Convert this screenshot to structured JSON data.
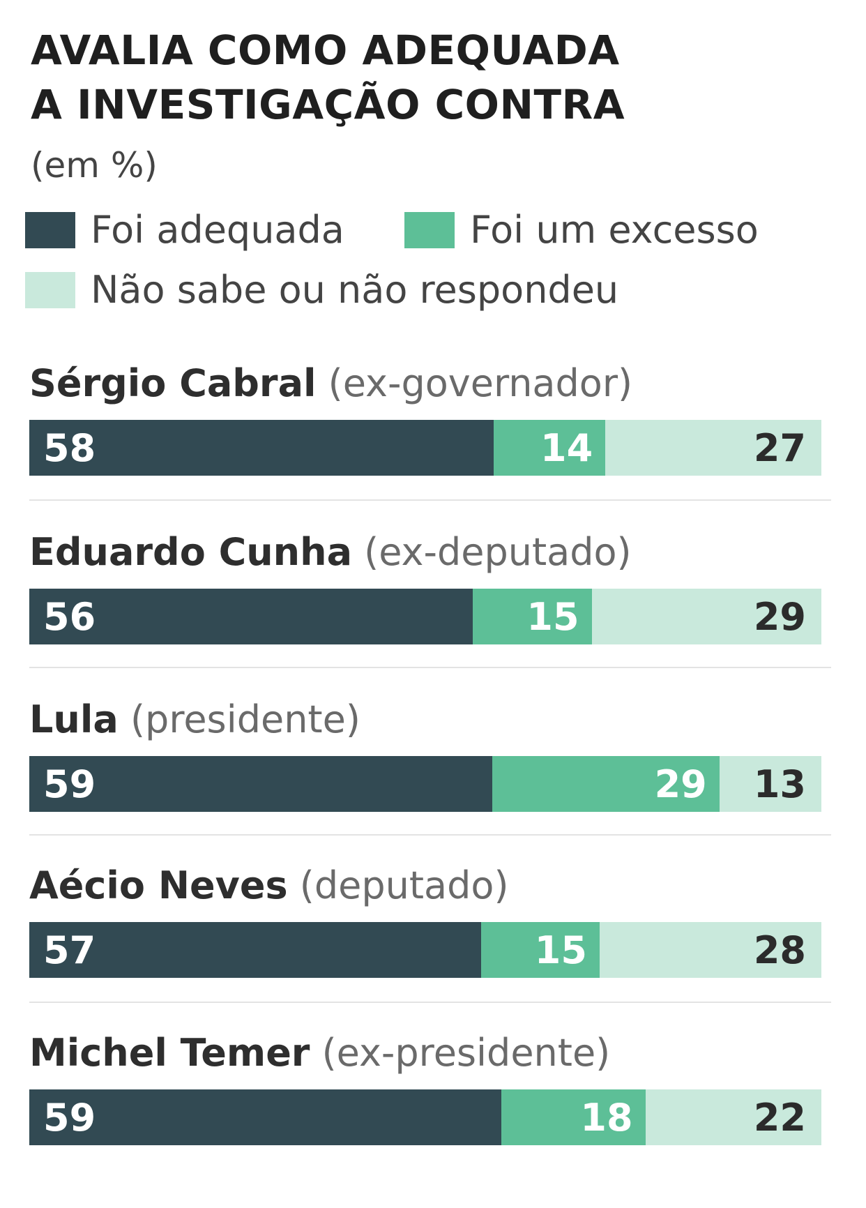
{
  "colors": {
    "dark": "#324a53",
    "green": "#5dbf97",
    "light": "#c9e9dc"
  },
  "chart_data": {
    "type": "bar",
    "orientation": "horizontal-stacked",
    "title": "AVALIA COMO ADEQUADA A INVESTIGAÇÃO CONTRA",
    "title_lines": [
      "AVALIA COMO ADEQUADA",
      "A INVESTIGAÇÃO CONTRA"
    ],
    "subtitle": "(em %)",
    "legend_position": "top",
    "grid": false,
    "categories": [
      {
        "name": "Sérgio Cabral",
        "role": "(ex-governador)"
      },
      {
        "name": "Eduardo Cunha",
        "role": "(ex-deputado)"
      },
      {
        "name": "Lula",
        "role": "(presidente)"
      },
      {
        "name": "Aécio Neves",
        "role": "(deputado)"
      },
      {
        "name": "Michel Temer",
        "role": "(ex-presidente)"
      }
    ],
    "series": [
      {
        "name": "Foi adequada",
        "color": "#324a53",
        "values": [
          58,
          56,
          59,
          57,
          59
        ]
      },
      {
        "name": "Foi um excesso",
        "color": "#5dbf97",
        "values": [
          14,
          15,
          29,
          15,
          18
        ]
      },
      {
        "name": "Não sabe ou não respondeu",
        "color": "#c9e9dc",
        "values": [
          27,
          29,
          13,
          28,
          22
        ]
      }
    ]
  }
}
